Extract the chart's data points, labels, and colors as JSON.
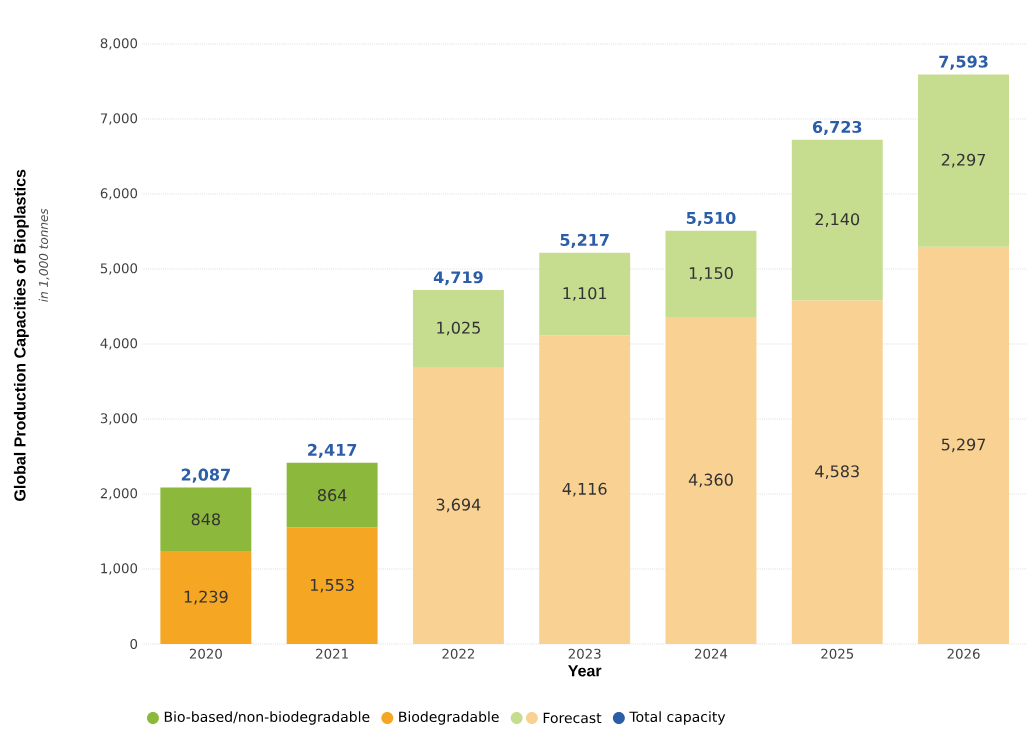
{
  "chart_data": {
    "type": "bar",
    "stacked": true,
    "xlabel": "Year",
    "ylabel": "Global Production Capacities of Bioplastics",
    "annotations": [
      "in 1,000 tonnes",
      "Forecast",
      "Total capacity"
    ],
    "categories": [
      "2020",
      "2021",
      "2022",
      "2023",
      "2024",
      "2025",
      "2026"
    ],
    "series": [
      {
        "name": "Biodegradable",
        "colors": [
          "#f5a623",
          "#f5a623",
          "#f9d293",
          "#f9d293",
          "#f9d293",
          "#f9d293",
          "#f9d293"
        ],
        "values": [
          1239,
          1553,
          3694,
          4116,
          4360,
          4583,
          5297
        ],
        "value_labels": [
          "1,239",
          "1,553",
          "3,694",
          "4,116",
          "4,360",
          "4,583",
          "5,297"
        ]
      },
      {
        "name": "Bio-based/non-biodegradable",
        "colors": [
          "#8cb83c",
          "#8cb83c",
          "#c6dd8f",
          "#c6dd8f",
          "#c6dd8f",
          "#c6dd8f",
          "#c6dd8f"
        ],
        "values": [
          848,
          864,
          1025,
          1101,
          1150,
          2140,
          2297
        ],
        "value_labels": [
          "848",
          "864",
          "1,025",
          "1,101",
          "1,150",
          "2,140",
          "2,297"
        ]
      }
    ],
    "totals": [
      "2,087",
      "2,417",
      "4,719",
      "5,217",
      "5,510",
      "6,723",
      "7,593"
    ],
    "ylim": [
      0,
      8000
    ],
    "yticks": [
      0,
      {
        "value": 1000,
        "label": "1,000"
      },
      {
        "value": 2000,
        "label": "2,000"
      },
      {
        "value": 3000,
        "label": "3,000"
      },
      {
        "value": 4000,
        "label": "4,000"
      },
      {
        "value": 5000,
        "label": "5,000"
      },
      {
        "value": 6000,
        "label": "6,000"
      },
      {
        "value": 7000,
        "label": "7,000"
      },
      {
        "value": 8000,
        "label": "8,000"
      }
    ],
    "grid": "y",
    "legend": "bottom"
  }
}
